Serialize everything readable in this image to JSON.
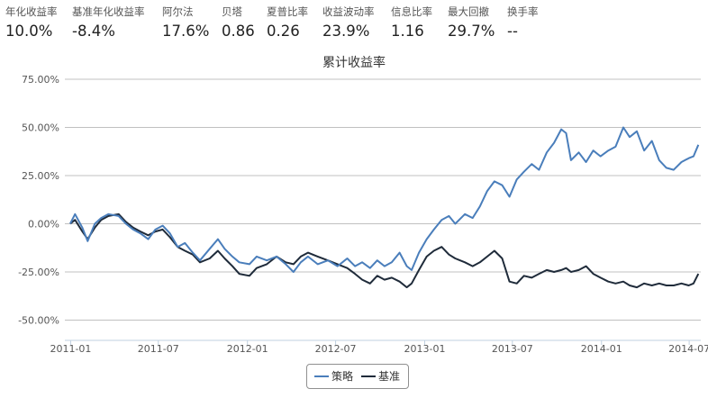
{
  "stats": [
    {
      "label": "年化收益率",
      "value": "10.0%"
    },
    {
      "label": "基准年化收益率",
      "value": "-8.4%"
    },
    {
      "label": "阿尔法",
      "value": "17.6%"
    },
    {
      "label": "贝塔",
      "value": "0.86"
    },
    {
      "label": "夏普比率",
      "value": "0.26"
    },
    {
      "label": "收益波动率",
      "value": "23.9%"
    },
    {
      "label": "信息比率",
      "value": "1.16"
    },
    {
      "label": "最大回撤",
      "value": "29.7%"
    },
    {
      "label": "换手率",
      "value": "--"
    }
  ],
  "chart_data": {
    "type": "line",
    "title": "累计收益率",
    "xlabel": "",
    "ylabel": "",
    "ylim": [
      -60,
      75
    ],
    "xlim": [
      "2010-12-20",
      "2014-07-25"
    ],
    "y_ticks": [
      75,
      50,
      25,
      0,
      -25,
      -50
    ],
    "y_tick_labels": [
      "75.00%",
      "50.00%",
      "25.00%",
      "0.00%",
      "-25.00%",
      "-50.00%"
    ],
    "x_ticks": [
      "2011-01",
      "2011-07",
      "2012-01",
      "2012-07",
      "2013-01",
      "2013-07",
      "2014-01",
      "2014-07"
    ],
    "grid": "horizontal",
    "legend_position": "bottom-center",
    "series": [
      {
        "name": "策略",
        "color": "#4a7ebb",
        "points": [
          [
            "2010-12-31",
            0
          ],
          [
            "2011-01-10",
            5
          ],
          [
            "2011-01-25",
            -2
          ],
          [
            "2011-02-05",
            -9
          ],
          [
            "2011-02-20",
            0
          ],
          [
            "2011-03-05",
            3
          ],
          [
            "2011-03-20",
            5
          ],
          [
            "2011-04-10",
            4
          ],
          [
            "2011-04-25",
            0
          ],
          [
            "2011-05-10",
            -3
          ],
          [
            "2011-05-25",
            -5
          ],
          [
            "2011-06-10",
            -8
          ],
          [
            "2011-06-25",
            -3
          ],
          [
            "2011-07-10",
            -1
          ],
          [
            "2011-07-25",
            -5
          ],
          [
            "2011-08-10",
            -12
          ],
          [
            "2011-08-25",
            -10
          ],
          [
            "2011-09-10",
            -15
          ],
          [
            "2011-09-25",
            -19
          ],
          [
            "2011-10-15",
            -13
          ],
          [
            "2011-11-01",
            -8
          ],
          [
            "2011-11-15",
            -13
          ],
          [
            "2011-12-01",
            -17
          ],
          [
            "2011-12-15",
            -20
          ],
          [
            "2012-01-05",
            -21
          ],
          [
            "2012-01-20",
            -17
          ],
          [
            "2012-02-10",
            -19
          ],
          [
            "2012-03-01",
            -17
          ],
          [
            "2012-03-20",
            -21
          ],
          [
            "2012-04-05",
            -25
          ],
          [
            "2012-04-20",
            -20
          ],
          [
            "2012-05-05",
            -17
          ],
          [
            "2012-05-25",
            -21
          ],
          [
            "2012-06-15",
            -19
          ],
          [
            "2012-07-05",
            -22
          ],
          [
            "2012-07-25",
            -18
          ],
          [
            "2012-08-10",
            -22
          ],
          [
            "2012-08-25",
            -20
          ],
          [
            "2012-09-10",
            -23
          ],
          [
            "2012-09-25",
            -19
          ],
          [
            "2012-10-10",
            -22
          ],
          [
            "2012-10-25",
            -20
          ],
          [
            "2012-11-10",
            -15
          ],
          [
            "2012-11-25",
            -22
          ],
          [
            "2012-12-05",
            -24
          ],
          [
            "2012-12-20",
            -15
          ],
          [
            "2013-01-05",
            -8
          ],
          [
            "2013-01-20",
            -3
          ],
          [
            "2013-02-05",
            2
          ],
          [
            "2013-02-20",
            4
          ],
          [
            "2013-03-05",
            0
          ],
          [
            "2013-03-25",
            5
          ],
          [
            "2013-04-10",
            3
          ],
          [
            "2013-04-25",
            9
          ],
          [
            "2013-05-10",
            17
          ],
          [
            "2013-05-25",
            22
          ],
          [
            "2013-06-10",
            20
          ],
          [
            "2013-06-25",
            14
          ],
          [
            "2013-07-10",
            23
          ],
          [
            "2013-07-25",
            27
          ],
          [
            "2013-08-10",
            31
          ],
          [
            "2013-08-25",
            28
          ],
          [
            "2013-09-10",
            37
          ],
          [
            "2013-09-25",
            42
          ],
          [
            "2013-10-10",
            49
          ],
          [
            "2013-10-20",
            47
          ],
          [
            "2013-10-30",
            33
          ],
          [
            "2013-11-15",
            37
          ],
          [
            "2013-11-30",
            32
          ],
          [
            "2013-12-15",
            38
          ],
          [
            "2013-12-30",
            35
          ],
          [
            "2014-01-15",
            38
          ],
          [
            "2014-01-30",
            40
          ],
          [
            "2014-02-15",
            50
          ],
          [
            "2014-02-28",
            45
          ],
          [
            "2014-03-15",
            48
          ],
          [
            "2014-03-30",
            38
          ],
          [
            "2014-04-15",
            43
          ],
          [
            "2014-04-30",
            33
          ],
          [
            "2014-05-15",
            29
          ],
          [
            "2014-05-30",
            28
          ],
          [
            "2014-06-15",
            32
          ],
          [
            "2014-06-30",
            34
          ],
          [
            "2014-07-10",
            35
          ],
          [
            "2014-07-20",
            41
          ]
        ]
      },
      {
        "name": "基准",
        "color": "#1f2b3a",
        "points": [
          [
            "2010-12-31",
            0
          ],
          [
            "2011-01-10",
            2
          ],
          [
            "2011-01-25",
            -4
          ],
          [
            "2011-02-05",
            -8
          ],
          [
            "2011-02-20",
            -2
          ],
          [
            "2011-03-05",
            2
          ],
          [
            "2011-03-20",
            4
          ],
          [
            "2011-04-10",
            5
          ],
          [
            "2011-04-25",
            1
          ],
          [
            "2011-05-10",
            -2
          ],
          [
            "2011-05-25",
            -4
          ],
          [
            "2011-06-10",
            -6
          ],
          [
            "2011-06-25",
            -4
          ],
          [
            "2011-07-10",
            -3
          ],
          [
            "2011-07-25",
            -7
          ],
          [
            "2011-08-10",
            -12
          ],
          [
            "2011-08-25",
            -14
          ],
          [
            "2011-09-10",
            -16
          ],
          [
            "2011-09-25",
            -20
          ],
          [
            "2011-10-15",
            -18
          ],
          [
            "2011-11-01",
            -14
          ],
          [
            "2011-11-15",
            -18
          ],
          [
            "2011-12-01",
            -22
          ],
          [
            "2011-12-15",
            -26
          ],
          [
            "2012-01-05",
            -27
          ],
          [
            "2012-01-20",
            -23
          ],
          [
            "2012-02-10",
            -21
          ],
          [
            "2012-03-01",
            -17
          ],
          [
            "2012-03-20",
            -20
          ],
          [
            "2012-04-05",
            -21
          ],
          [
            "2012-04-20",
            -17
          ],
          [
            "2012-05-05",
            -15
          ],
          [
            "2012-05-25",
            -17
          ],
          [
            "2012-06-15",
            -19
          ],
          [
            "2012-07-05",
            -21
          ],
          [
            "2012-07-25",
            -23
          ],
          [
            "2012-08-10",
            -26
          ],
          [
            "2012-08-25",
            -29
          ],
          [
            "2012-09-10",
            -31
          ],
          [
            "2012-09-25",
            -27
          ],
          [
            "2012-10-10",
            -29
          ],
          [
            "2012-10-25",
            -28
          ],
          [
            "2012-11-10",
            -30
          ],
          [
            "2012-11-25",
            -33
          ],
          [
            "2012-12-05",
            -31
          ],
          [
            "2012-12-20",
            -24
          ],
          [
            "2013-01-05",
            -17
          ],
          [
            "2013-01-20",
            -14
          ],
          [
            "2013-02-05",
            -12
          ],
          [
            "2013-02-20",
            -16
          ],
          [
            "2013-03-05",
            -18
          ],
          [
            "2013-03-25",
            -20
          ],
          [
            "2013-04-10",
            -22
          ],
          [
            "2013-04-25",
            -20
          ],
          [
            "2013-05-10",
            -17
          ],
          [
            "2013-05-25",
            -14
          ],
          [
            "2013-06-10",
            -18
          ],
          [
            "2013-06-25",
            -30
          ],
          [
            "2013-07-10",
            -31
          ],
          [
            "2013-07-25",
            -27
          ],
          [
            "2013-08-10",
            -28
          ],
          [
            "2013-08-25",
            -26
          ],
          [
            "2013-09-10",
            -24
          ],
          [
            "2013-09-25",
            -25
          ],
          [
            "2013-10-10",
            -24
          ],
          [
            "2013-10-20",
            -23
          ],
          [
            "2013-10-30",
            -25
          ],
          [
            "2013-11-15",
            -24
          ],
          [
            "2013-11-30",
            -22
          ],
          [
            "2013-12-15",
            -26
          ],
          [
            "2013-12-30",
            -28
          ],
          [
            "2014-01-15",
            -30
          ],
          [
            "2014-01-30",
            -31
          ],
          [
            "2014-02-15",
            -30
          ],
          [
            "2014-02-28",
            -32
          ],
          [
            "2014-03-15",
            -33
          ],
          [
            "2014-03-30",
            -31
          ],
          [
            "2014-04-15",
            -32
          ],
          [
            "2014-04-30",
            -31
          ],
          [
            "2014-05-15",
            -32
          ],
          [
            "2014-05-30",
            -32
          ],
          [
            "2014-06-15",
            -31
          ],
          [
            "2014-06-30",
            -32
          ],
          [
            "2014-07-10",
            -31
          ],
          [
            "2014-07-20",
            -26
          ]
        ]
      }
    ]
  }
}
